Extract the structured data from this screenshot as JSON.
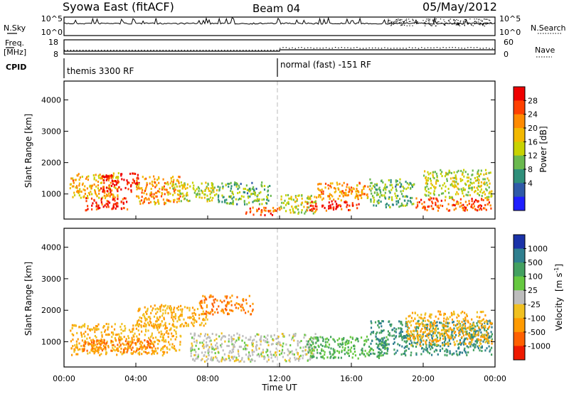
{
  "header": {
    "station": "Syowa East (fitACF)",
    "beam": "Beam 04",
    "date": "05/May/2012"
  },
  "nsky_panel": {
    "left_label": "N.Sky",
    "right_label": "N.Search",
    "left_ticks": [
      "10^5",
      "10^0"
    ],
    "right_ticks": [
      "10^5",
      "10^0"
    ]
  },
  "freq_panel": {
    "left_label_line1": "Freq.",
    "left_label_line2": "[MHz]",
    "right_label": "Nave",
    "left_ticks": [
      "18",
      "8"
    ],
    "right_ticks": [
      "60",
      "0"
    ]
  },
  "cpid_panel": {
    "label": "CPID",
    "segments": [
      {
        "label": "themis 3300 RF",
        "start_hour": 0,
        "end_hour": 12
      },
      {
        "label": "normal (fast) -151 RF",
        "start_hour": 12,
        "end_hour": 24
      }
    ]
  },
  "power_colorbar": {
    "title": "Power [dB]",
    "ticks": [
      "28",
      "24",
      "20",
      "16",
      "12",
      "8",
      "4"
    ],
    "colors": [
      "#ee0000",
      "#ff4000",
      "#ff8a00",
      "#f2b800",
      "#c8d200",
      "#6ab94f",
      "#2f8f7a",
      "#2f5aa8",
      "#1f1fff"
    ]
  },
  "velocity_colorbar": {
    "title_part1": "Velocity",
    "title_part2": "[m s",
    "title_sup": "-1",
    "title_part3": "]",
    "ticks": [
      "1000",
      "500",
      "100",
      "25",
      "-25",
      "-100",
      "-500",
      "-1000"
    ],
    "colors": [
      "#1a32a8",
      "#2f7f8f",
      "#43a060",
      "#66c840",
      "#bdbdbd",
      "#f0c020",
      "#ff9a00",
      "#ff6000",
      "#ee1a00"
    ]
  },
  "chart_data": [
    {
      "type": "heatmap",
      "panel": "power",
      "ylabel": "Slant Range [km]",
      "ylim": [
        200,
        4600
      ],
      "y_ticks": [
        1000,
        2000,
        3000,
        4000
      ],
      "xlim": [
        0,
        24
      ],
      "note": "approximate dominant-power regions read from the image (dB)",
      "regions": [
        {
          "t0": 0.3,
          "t1": 3.0,
          "r0": 900,
          "r1": 1700,
          "value": 18
        },
        {
          "t0": 2.0,
          "t1": 4.2,
          "r0": 1100,
          "r1": 1700,
          "value": 28
        },
        {
          "t0": 1.0,
          "t1": 3.5,
          "r0": 500,
          "r1": 900,
          "value": 26
        },
        {
          "t0": 4.0,
          "t1": 6.5,
          "r0": 700,
          "r1": 1600,
          "value": 20
        },
        {
          "t0": 6.0,
          "t1": 8.5,
          "r0": 800,
          "r1": 1400,
          "value": 14
        },
        {
          "t0": 8.5,
          "t1": 11.5,
          "r0": 700,
          "r1": 1400,
          "value": 10
        },
        {
          "t0": 10.0,
          "t1": 12.0,
          "r0": 350,
          "r1": 600,
          "value": 24
        },
        {
          "t0": 12.0,
          "t1": 14.0,
          "r0": 400,
          "r1": 1000,
          "value": 14
        },
        {
          "t0": 13.5,
          "t1": 16.5,
          "r0": 500,
          "r1": 800,
          "value": 26
        },
        {
          "t0": 14.0,
          "t1": 17.0,
          "r0": 800,
          "r1": 1400,
          "value": 20
        },
        {
          "t0": 17.0,
          "t1": 19.5,
          "r0": 600,
          "r1": 1500,
          "value": 10
        },
        {
          "t0": 19.5,
          "t1": 23.8,
          "r0": 500,
          "r1": 900,
          "value": 24
        },
        {
          "t0": 20.0,
          "t1": 23.8,
          "r0": 900,
          "r1": 1800,
          "value": 14
        }
      ]
    },
    {
      "type": "heatmap",
      "panel": "velocity",
      "xlabel": "Time UT",
      "ylabel": "Slant Range [km]",
      "ylim": [
        200,
        4600
      ],
      "y_ticks": [
        1000,
        2000,
        3000,
        4000
      ],
      "xlim": [
        0,
        24
      ],
      "x_ticks": [
        "00:00",
        "04:00",
        "08:00",
        "12:00",
        "16:00",
        "20:00",
        "00:00"
      ],
      "note": "approximate dominant-velocity regions read from the image (m/s)",
      "regions": [
        {
          "t0": 0.3,
          "t1": 6.5,
          "r0": 600,
          "r1": 1600,
          "value": -100
        },
        {
          "t0": 1.0,
          "t1": 5.0,
          "r0": 700,
          "r1": 1100,
          "value": -500
        },
        {
          "t0": 4.0,
          "t1": 8.0,
          "r0": 1500,
          "r1": 2200,
          "value": -100
        },
        {
          "t0": 7.5,
          "t1": 10.5,
          "r0": 1900,
          "r1": 2500,
          "value": -500
        },
        {
          "t0": 7.0,
          "t1": 12.0,
          "r0": 400,
          "r1": 1300,
          "value": 0
        },
        {
          "t0": 12.0,
          "t1": 14.0,
          "r0": 400,
          "r1": 1300,
          "value": 0
        },
        {
          "t0": 13.5,
          "t1": 18.0,
          "r0": 500,
          "r1": 1200,
          "value": 100
        },
        {
          "t0": 17.0,
          "t1": 23.8,
          "r0": 600,
          "r1": 1700,
          "value": 500
        },
        {
          "t0": 19.0,
          "t1": 23.8,
          "r0": 900,
          "r1": 2000,
          "value": -100
        }
      ]
    }
  ]
}
